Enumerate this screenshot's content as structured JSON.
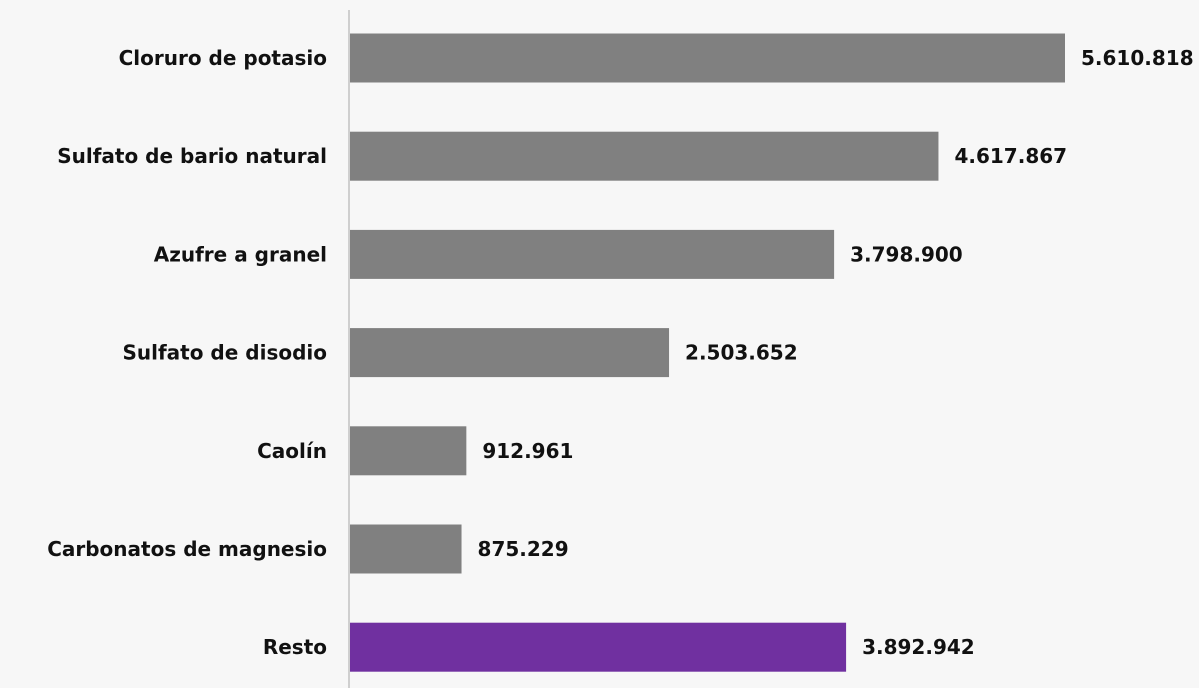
{
  "chart_data": {
    "type": "bar",
    "orientation": "horizontal",
    "categories": [
      "Cloruro de potasio",
      "Sulfato de bario natural",
      "Azufre a granel",
      "Sulfato de disodio",
      "Caolín",
      "Carbonatos de magnesio",
      "Resto"
    ],
    "values": [
      5610818,
      4617867,
      3798900,
      2503652,
      912961,
      875229,
      3892942
    ],
    "value_labels": [
      "5.610.818",
      "4.617.867",
      "3.798.900",
      "2.503.652",
      "912.961",
      "875.229",
      "3.892.942"
    ],
    "bar_colors": [
      "#808080",
      "#808080",
      "#808080",
      "#808080",
      "#808080",
      "#808080",
      "#7030a0"
    ],
    "title": "",
    "xlabel": "",
    "ylabel": "",
    "xlim": [
      0,
      5610818
    ],
    "grid": false,
    "legend": "none"
  },
  "colors": {
    "default_bar": "#808080",
    "highlight_bar": "#7030a0",
    "axis_line": "#cfcfcf",
    "background": "#f7f7f7"
  }
}
